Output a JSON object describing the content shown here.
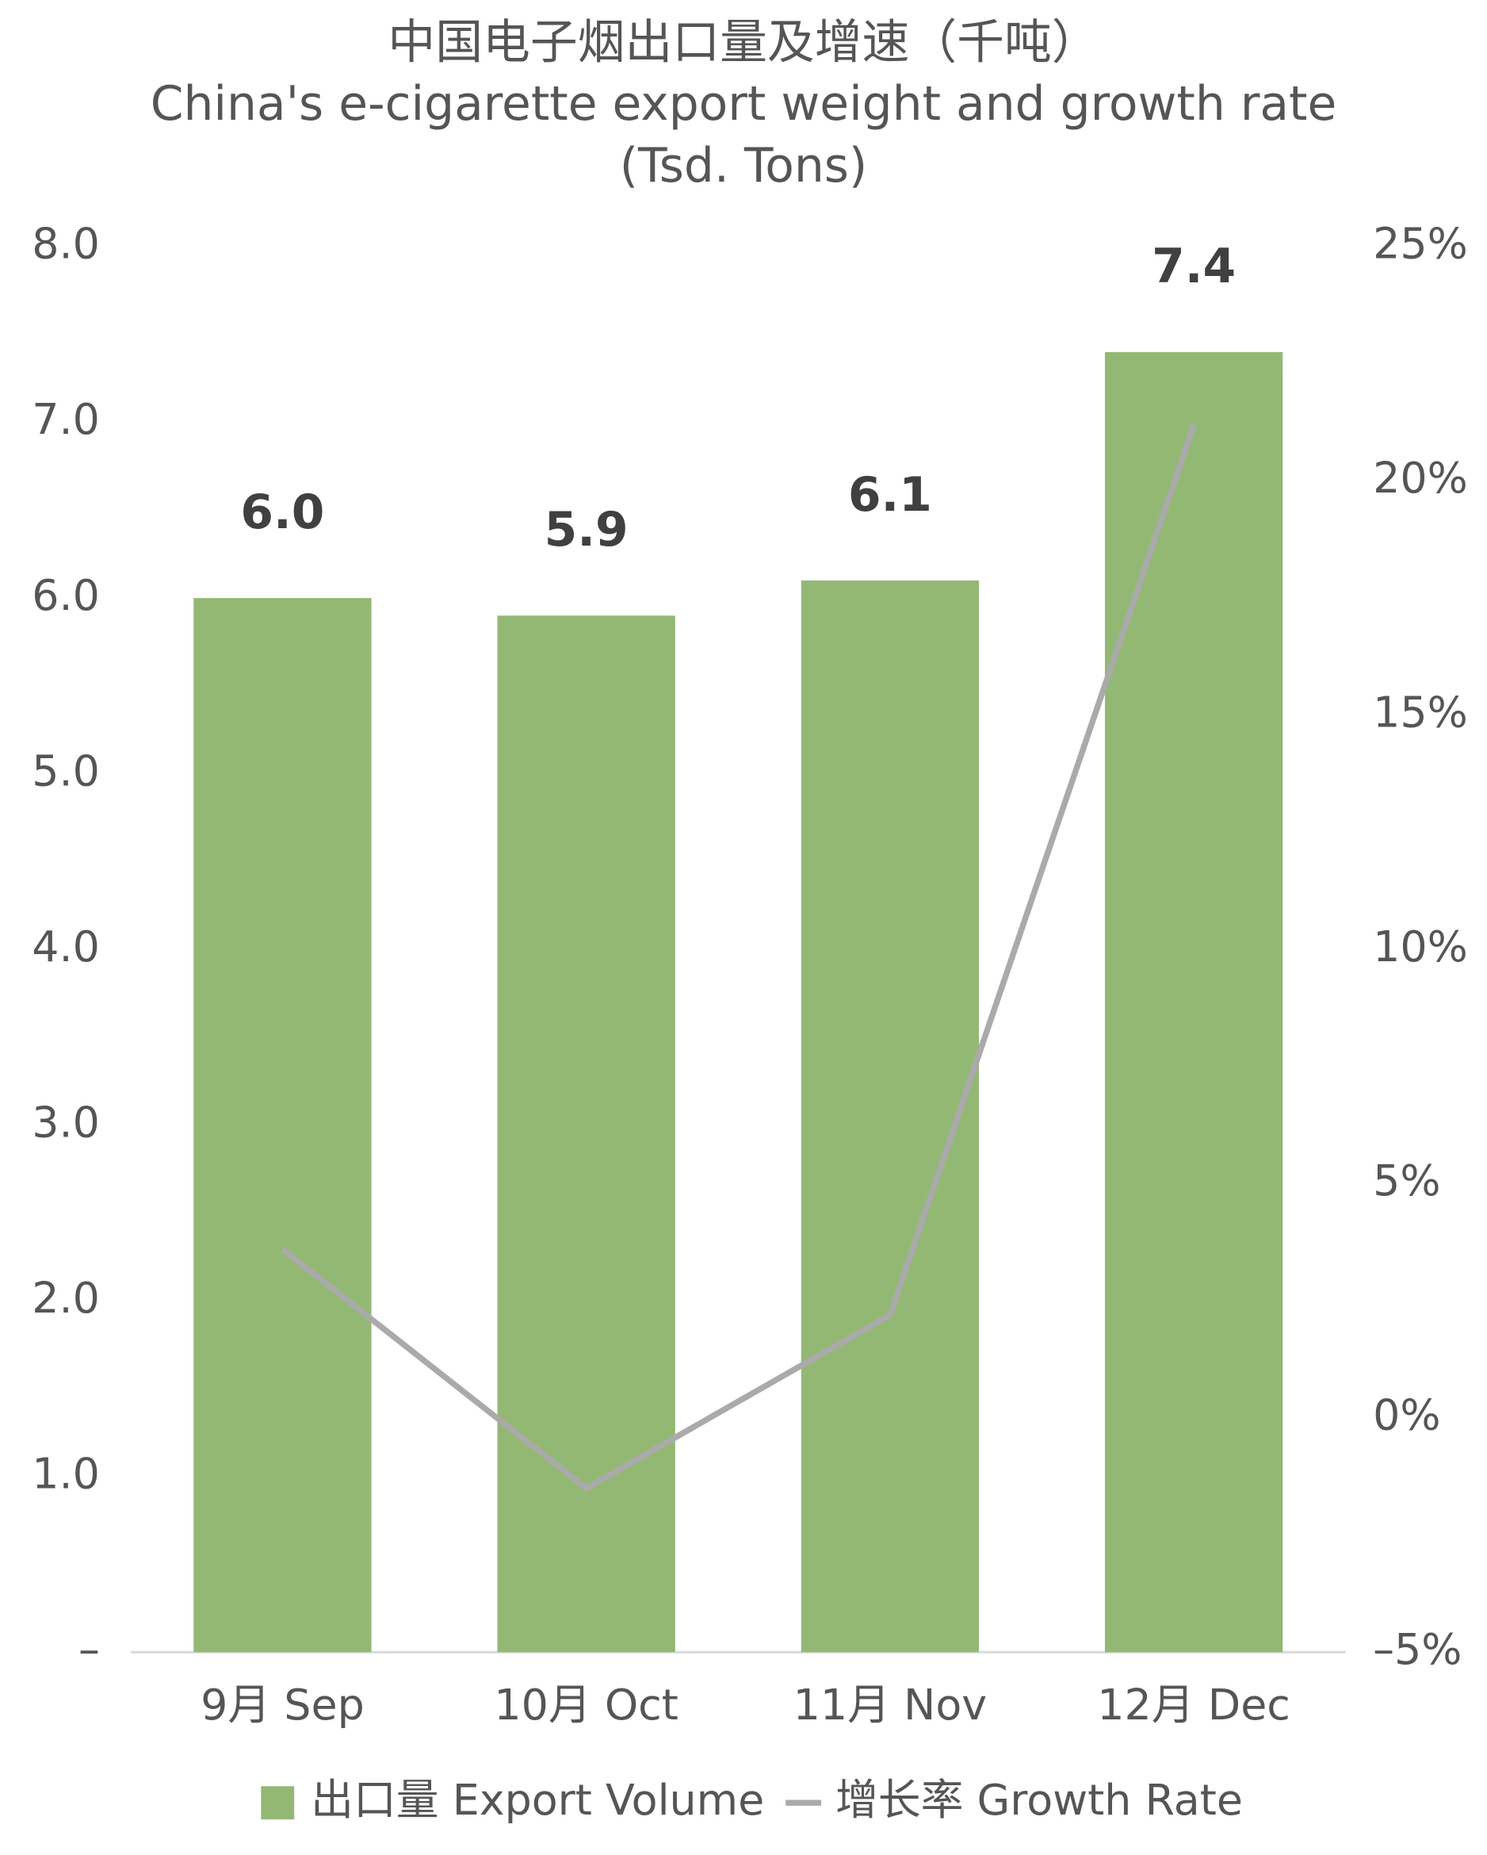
{
  "chart_data": {
    "type": "bar",
    "title": "中国电子烟出口量及增速（千吨）",
    "subtitle": "China's e-cigarette export weight and growth rate (Tsd. Tons)",
    "categories": [
      "9月 Sep",
      "10月 Oct",
      "11月 Nov",
      "12月 Dec"
    ],
    "series": [
      {
        "name": "出口量 Export Volume",
        "type": "bar",
        "color": "#93b874",
        "values": [
          6.0,
          5.9,
          6.1,
          7.4
        ],
        "value_labels": [
          "6.0",
          "5.9",
          "6.1",
          "7.4"
        ]
      },
      {
        "name": "增长率 Growth Rate",
        "type": "line",
        "axis": "y2",
        "color": "#aaaaaa",
        "values": [
          3.6,
          -1.5,
          2.2,
          21.2
        ]
      }
    ],
    "ylim": [
      0,
      8
    ],
    "yticks": [
      {
        "value": 0,
        "label": "–"
      },
      {
        "value": 1,
        "label": "1.0"
      },
      {
        "value": 2,
        "label": "2.0"
      },
      {
        "value": 3,
        "label": "3.0"
      },
      {
        "value": 4,
        "label": "4.0"
      },
      {
        "value": 5,
        "label": "5.0"
      },
      {
        "value": 6,
        "label": "6.0"
      },
      {
        "value": 7,
        "label": "7.0"
      },
      {
        "value": 8,
        "label": "8.0"
      }
    ],
    "y2lim": [
      -5,
      25
    ],
    "y2ticks": [
      {
        "value": -5,
        "label": "–5%"
      },
      {
        "value": 0,
        "label": "0%"
      },
      {
        "value": 5,
        "label": "5%"
      },
      {
        "value": 10,
        "label": "10%"
      },
      {
        "value": 15,
        "label": "15%"
      },
      {
        "value": 20,
        "label": "20%"
      },
      {
        "value": 25,
        "label": "25%"
      }
    ],
    "grid": false,
    "legend": "bottom"
  }
}
